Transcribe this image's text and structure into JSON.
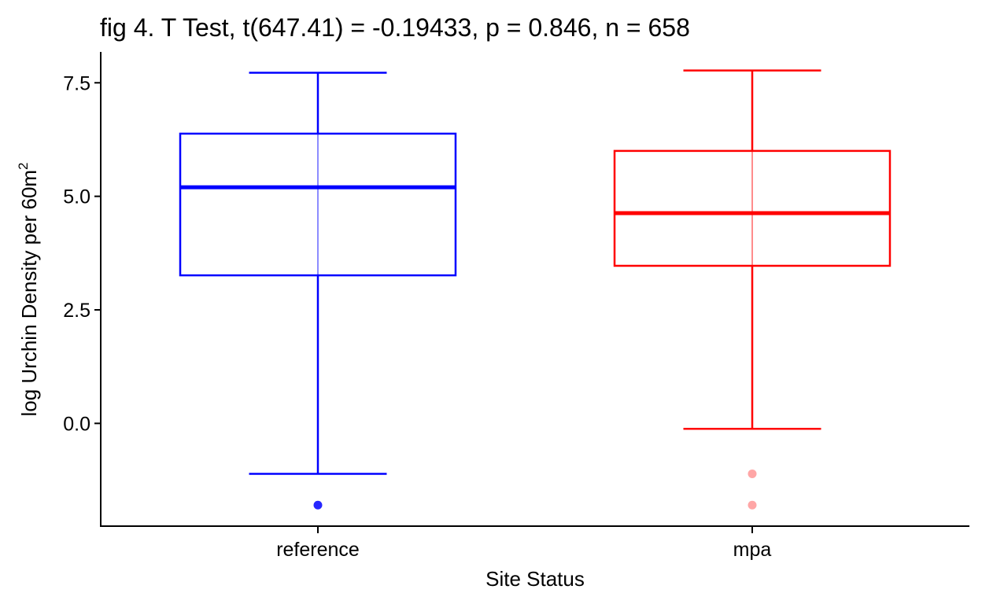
{
  "chart_data": {
    "type": "boxplot",
    "title": "fig 4. T Test, t(647.41) = -0.19433, p = 0.846, n = 658",
    "xlabel": "Site Status",
    "ylabel": "log Urchin Density per 60m",
    "ylabel_superscript": "2",
    "categories": [
      "reference",
      "mpa"
    ],
    "ylim": [
      -2.28,
      8.18
    ],
    "yticks": [
      0.0,
      2.5,
      5.0,
      7.5
    ],
    "ytick_labels": [
      "0.0",
      "2.5",
      "5.0",
      "7.5"
    ],
    "grid": false,
    "legend": "none",
    "series": [
      {
        "category": "reference",
        "color": "#0000ff",
        "whisker_low": -1.11,
        "q1": 3.26,
        "median": 5.2,
        "q3": 6.38,
        "whisker_high": 7.72,
        "outliers": [
          -1.8
        ]
      },
      {
        "category": "mpa",
        "color": "#ff0000",
        "whisker_low": -0.12,
        "q1": 3.47,
        "median": 4.63,
        "q3": 6.0,
        "whisker_high": 7.77,
        "outliers": [
          -1.11,
          -1.8
        ]
      }
    ]
  }
}
